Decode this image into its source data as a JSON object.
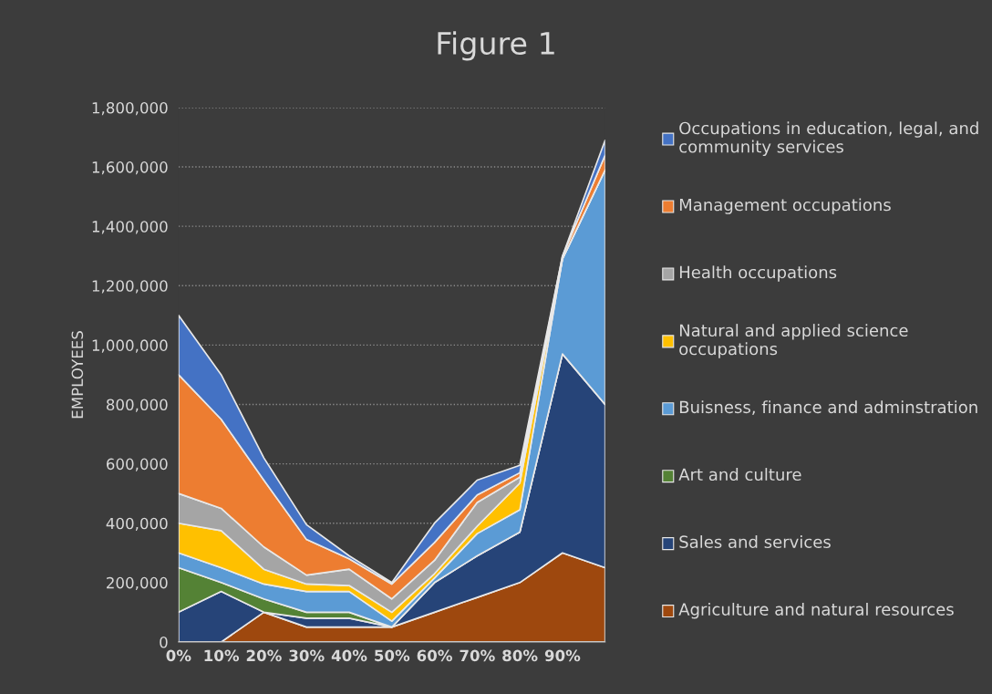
{
  "chart_data": {
    "type": "area",
    "title": "Figure 1",
    "ylabel": "EMPLOYEES",
    "stacked": true,
    "categories": [
      "0%",
      "10%",
      "20%",
      "30%",
      "40%",
      "50%",
      "60%",
      "70%",
      "80%",
      "90%",
      null
    ],
    "ylim": [
      0,
      1800000
    ],
    "yticks": [
      0,
      {
        "value": 200000,
        "label": "200,000"
      },
      {
        "value": 400000,
        "label": "400,000"
      },
      {
        "value": 600000,
        "label": "600,000"
      },
      {
        "value": 800000,
        "label": "800,000"
      },
      {
        "value": 1000000,
        "label": "1,000,000"
      },
      {
        "value": 1200000,
        "label": "1,200,000"
      },
      {
        "value": 1400000,
        "label": "1,400,000"
      },
      {
        "value": 1600000,
        "label": "1,600,000"
      },
      {
        "value": 1800000,
        "label": "1,800,000"
      }
    ],
    "grid": "y",
    "legend": "right",
    "series": [
      {
        "name": "Agriculture and natural resources",
        "color": "#9e480e",
        "values": [
          0,
          0,
          100000,
          50000,
          50000,
          50000,
          100000,
          150000,
          200000,
          300000,
          250000
        ]
      },
      {
        "name": "Sales and services",
        "color": "#264478",
        "values": [
          100000,
          170000,
          0,
          30000,
          30000,
          0,
          100000,
          140000,
          170000,
          670000,
          550000
        ]
      },
      {
        "name": "Art and culture",
        "color": "#548235",
        "values": [
          150000,
          30000,
          45000,
          20000,
          20000,
          0,
          0,
          0,
          0,
          0,
          0
        ]
      },
      {
        "name": "Buisness, finance and adminstration",
        "color": "#5b9bd5",
        "values": [
          50000,
          50000,
          50000,
          70000,
          70000,
          20000,
          15000,
          75000,
          75000,
          320000,
          790000
        ]
      },
      {
        "name": "Natural and applied science occupations",
        "color": "#ffc000",
        "values": [
          100000,
          125000,
          50000,
          25000,
          20000,
          30000,
          15000,
          25000,
          90000,
          0,
          0
        ]
      },
      {
        "name": "Health occupations",
        "color": "#a5a5a5",
        "values": [
          100000,
          75000,
          75000,
          30000,
          55000,
          45000,
          45000,
          80000,
          20000,
          0,
          0
        ]
      },
      {
        "name": "Management occupations",
        "color": "#ed7d31",
        "values": [
          400000,
          300000,
          225000,
          120000,
          35000,
          50000,
          60000,
          25000,
          15000,
          10000,
          50000
        ]
      },
      {
        "name": "Occupations in education, legal, and community services",
        "color": "#4472c4",
        "values": [
          200000,
          150000,
          75000,
          50000,
          10000,
          5000,
          65000,
          50000,
          25000,
          0,
          50000
        ]
      }
    ]
  }
}
